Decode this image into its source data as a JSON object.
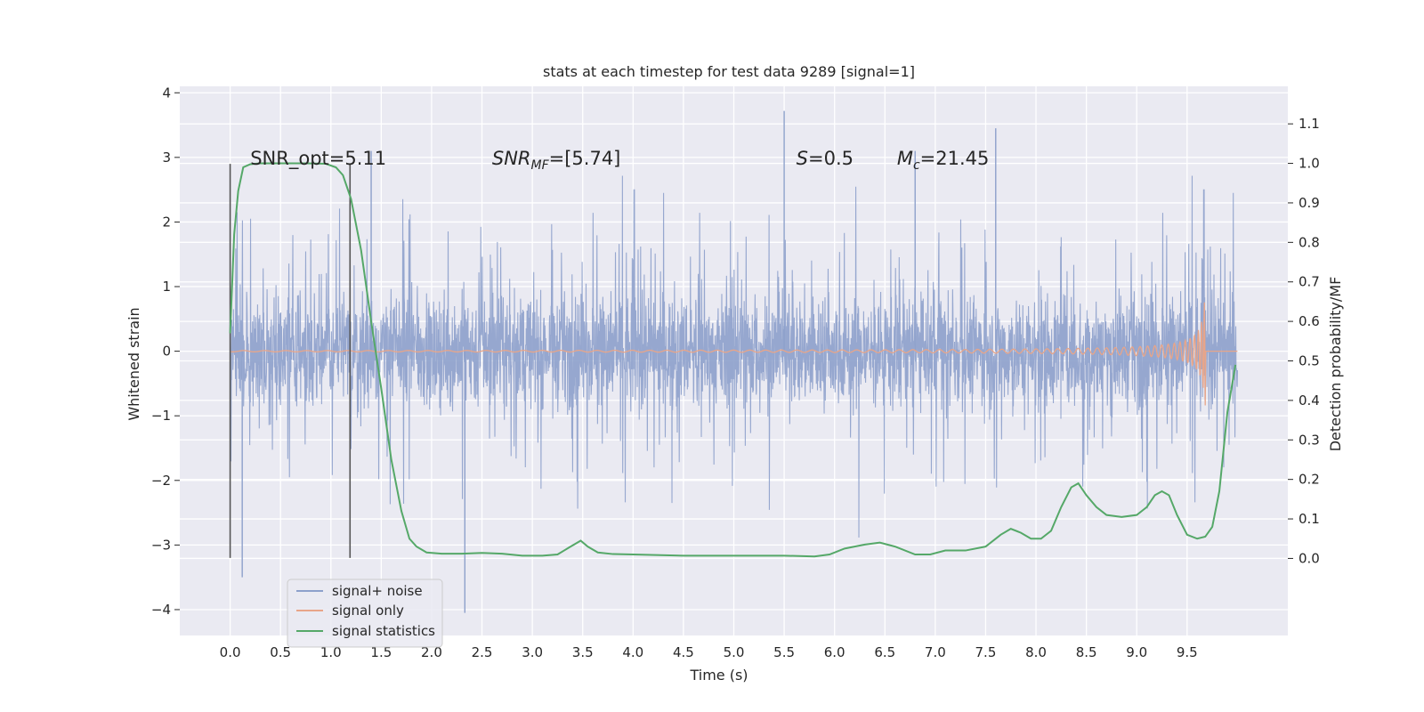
{
  "chart_data": {
    "type": "line",
    "title": "stats at each timestep for test data 9289 [signal=1]",
    "xlabel": "Time (s)",
    "ylabel": "Whitened strain",
    "y2label": "Detection probability/MF",
    "xlim": [
      -0.5,
      10.5
    ],
    "ylim": [
      -4.4,
      4.1
    ],
    "y2lim": [
      -0.195,
      1.195
    ],
    "x_ticks": [
      0.0,
      0.5,
      1.0,
      1.5,
      2.0,
      2.5,
      3.0,
      3.5,
      4.0,
      4.5,
      5.0,
      5.5,
      6.0,
      6.5,
      7.0,
      7.5,
      8.0,
      8.5,
      9.0,
      9.5
    ],
    "x_tick_labels": [
      "0.0",
      "0.5",
      "1.0",
      "1.5",
      "2.0",
      "2.5",
      "3.0",
      "3.5",
      "4.0",
      "4.5",
      "5.0",
      "5.5",
      "6.0",
      "6.5",
      "7.0",
      "7.5",
      "8.0",
      "8.5",
      "9.0",
      "9.5"
    ],
    "y_ticks": [
      4,
      3,
      2,
      1,
      0,
      -1,
      -2,
      -3,
      -4
    ],
    "y_tick_labels": [
      "4",
      "3",
      "2",
      "1",
      "0",
      "−1",
      "−2",
      "−3",
      "−4"
    ],
    "y2_ticks": [
      1.1,
      1.0,
      0.9,
      0.8,
      0.7,
      0.6,
      0.5,
      0.4,
      0.3,
      0.2,
      0.1,
      0.0
    ],
    "y2_tick_labels": [
      "1.1",
      "1.0",
      "0.9",
      "0.8",
      "0.7",
      "0.6",
      "0.5",
      "0.4",
      "0.3",
      "0.2",
      "0.1",
      "0.0"
    ],
    "grid": true,
    "legend_position": "lower-left",
    "legend": [
      "signal+ noise",
      "signal only",
      "signal statistics"
    ],
    "colors": {
      "signal_noise": "#8da0cb",
      "signal_only": "#e8a589",
      "statistics": "#55a868",
      "window_marker": "#555555",
      "background": "#eaeaf2",
      "grid": "#ffffff"
    },
    "annotations": [
      {
        "label": "SNR_opt=5.11",
        "x": 0.2,
        "y": 3.0
      },
      {
        "label_italic": "SNR",
        "label_sub": "MF",
        "label_rest": "=[5.74]",
        "x": 2.6,
        "y": 3.0
      },
      {
        "label_italic": "S",
        "label_sub": "",
        "label_rest": "=0.5",
        "x": 5.62,
        "y": 3.0
      },
      {
        "label_italic": "M",
        "label_sub": "c",
        "label_rest": "=21.45",
        "x": 6.62,
        "y": 3.0
      }
    ],
    "window_markers": {
      "x": [
        0.0,
        1.19
      ],
      "y_range": [
        -3.2,
        2.9
      ]
    },
    "series": [
      {
        "name": "signal+ noise",
        "axis": "left",
        "time_range": [
          0.0,
          10.0
        ],
        "envelope_typical": 1.1,
        "peak_min": -4.05,
        "peak_max": 3.72
      },
      {
        "name": "signal only",
        "axis": "left",
        "time_range": [
          0.0,
          9.68
        ],
        "chirp_peak_amplitude": 1.0,
        "merger_time": 9.68
      },
      {
        "name": "signal statistics",
        "axis": "right",
        "x": [
          0.0,
          0.04,
          0.08,
          0.13,
          0.2,
          0.3,
          0.5,
          0.75,
          0.95,
          1.05,
          1.12,
          1.2,
          1.3,
          1.4,
          1.5,
          1.6,
          1.7,
          1.78,
          1.85,
          1.95,
          2.1,
          2.3,
          2.5,
          2.7,
          2.9,
          3.1,
          3.25,
          3.38,
          3.48,
          3.55,
          3.65,
          3.8,
          4.0,
          4.5,
          5.0,
          5.5,
          5.8,
          5.95,
          6.1,
          6.3,
          6.45,
          6.6,
          6.8,
          6.95,
          7.1,
          7.3,
          7.5,
          7.65,
          7.75,
          7.85,
          7.95,
          8.05,
          8.15,
          8.25,
          8.35,
          8.42,
          8.5,
          8.6,
          8.7,
          8.85,
          9.0,
          9.1,
          9.18,
          9.25,
          9.32,
          9.4,
          9.5,
          9.6,
          9.68,
          9.75,
          9.82,
          9.9,
          9.98
        ],
        "values": [
          0.57,
          0.82,
          0.93,
          0.99,
          0.998,
          1.0,
          1.0,
          1.0,
          0.999,
          0.99,
          0.97,
          0.91,
          0.78,
          0.6,
          0.43,
          0.25,
          0.12,
          0.05,
          0.03,
          0.015,
          0.012,
          0.012,
          0.014,
          0.012,
          0.007,
          0.007,
          0.01,
          0.03,
          0.045,
          0.03,
          0.015,
          0.011,
          0.01,
          0.007,
          0.007,
          0.007,
          0.005,
          0.01,
          0.025,
          0.035,
          0.04,
          0.03,
          0.01,
          0.01,
          0.02,
          0.02,
          0.03,
          0.06,
          0.075,
          0.065,
          0.05,
          0.05,
          0.07,
          0.13,
          0.18,
          0.19,
          0.16,
          0.13,
          0.11,
          0.105,
          0.11,
          0.13,
          0.16,
          0.17,
          0.16,
          0.11,
          0.06,
          0.05,
          0.055,
          0.08,
          0.17,
          0.37,
          0.49
        ]
      }
    ]
  }
}
